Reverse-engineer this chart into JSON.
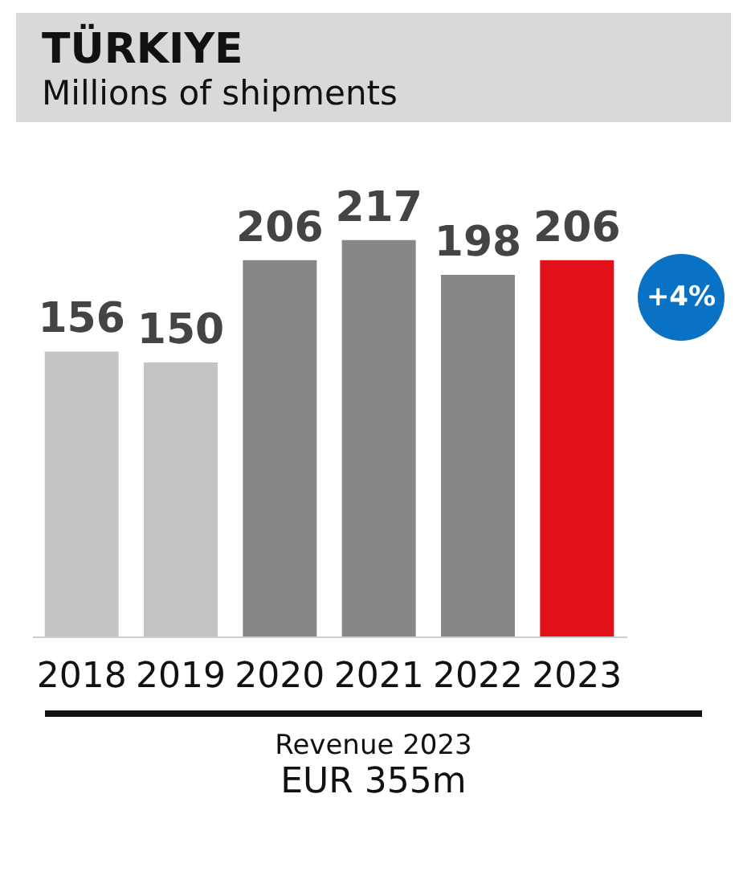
{
  "chart_data": {
    "type": "bar",
    "title": "TÜRKIYE",
    "subtitle": "Millions of shipments",
    "categories": [
      "2018",
      "2019",
      "2020",
      "2021",
      "2022",
      "2023"
    ],
    "values": [
      156,
      150,
      206,
      217,
      198,
      206
    ],
    "colors": [
      "#c4c4c4",
      "#c4c4c4",
      "#878787",
      "#878787",
      "#878787",
      "#e2111a"
    ],
    "data_labels": true,
    "annotations": [
      "+4%",
      "Revenue 2023",
      "EUR 355m"
    ]
  }
}
